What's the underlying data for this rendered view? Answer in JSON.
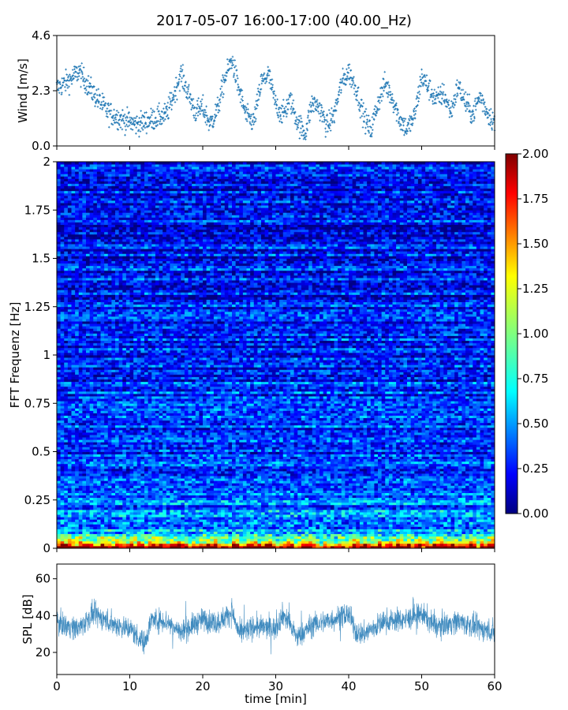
{
  "title": "2017-05-07 16:00-17:00 (40.00_Hz)",
  "chart_data": [
    {
      "type": "scatter",
      "name": "wind",
      "ylabel": "Wind [m/s]",
      "xlim": [
        0,
        60
      ],
      "ylim": [
        0.0,
        4.6
      ],
      "yticks": [
        0.0,
        2.3,
        4.6
      ],
      "ytick_labels": [
        "0.0",
        "2.3",
        "4.6"
      ],
      "color": "#1f77b4",
      "marker": "+",
      "trend_x": [
        0,
        2,
        3,
        5,
        7,
        9,
        11,
        13,
        15,
        16,
        17,
        18,
        19,
        20,
        21,
        22,
        23,
        24,
        25,
        26,
        27,
        28,
        29,
        30,
        31,
        32,
        33,
        34,
        35,
        36,
        37,
        38,
        39,
        40,
        41,
        42,
        43,
        44,
        45,
        46,
        47,
        48,
        49,
        50,
        51,
        52,
        53,
        54,
        55,
        56,
        57,
        58,
        59,
        60
      ],
      "trend_y": [
        2.4,
        2.8,
        3.1,
        2.2,
        1.4,
        1.1,
        0.9,
        1.1,
        1.3,
        2.1,
        3.0,
        2.2,
        1.4,
        1.6,
        0.9,
        1.5,
        2.8,
        3.6,
        2.3,
        1.2,
        1.0,
        2.6,
        3.0,
        1.7,
        1.3,
        1.9,
        1.0,
        0.5,
        1.8,
        1.6,
        0.8,
        1.3,
        2.6,
        3.1,
        2.4,
        1.3,
        0.6,
        1.8,
        2.6,
        2.0,
        1.1,
        0.7,
        1.2,
        2.9,
        2.4,
        1.9,
        2.2,
        1.4,
        2.5,
        1.8,
        1.3,
        2.1,
        1.4,
        1.0
      ],
      "noise": 0.45
    },
    {
      "type": "heatmap",
      "name": "spectrogram",
      "ylabel": "FFT Frequenz [Hz]",
      "xlim": [
        0,
        60
      ],
      "ylim": [
        0,
        2
      ],
      "yticks": [
        0,
        0.25,
        0.5,
        0.75,
        1,
        1.25,
        1.5,
        1.75,
        2
      ],
      "ytick_labels": [
        "0",
        "0.25",
        "0.5",
        "0.75",
        "1",
        "1.25",
        "1.5",
        "1.75",
        "2"
      ],
      "colormap": "jet",
      "colorbar": {
        "range": [
          0.0,
          2.0
        ],
        "ticks": [
          0.0,
          0.25,
          0.5,
          0.75,
          1.0,
          1.25,
          1.5,
          1.75,
          2.0
        ],
        "tick_labels": [
          "0.00",
          "0.25",
          "0.50",
          "0.75",
          "1.00",
          "1.25",
          "1.50",
          "1.75",
          "2.00"
        ]
      },
      "n_time_bins": 120,
      "n_freq_bins": 160,
      "low_freq_energy": 1.6,
      "background_level": 0.38
    },
    {
      "type": "line",
      "name": "spl",
      "ylabel": "SPL [dB]",
      "xlabel": "time [min]",
      "xlim": [
        0,
        60
      ],
      "ylim": [
        8,
        68
      ],
      "yticks": [
        20,
        40,
        60
      ],
      "ytick_labels": [
        "20",
        "40",
        "60"
      ],
      "xticks": [
        0,
        10,
        20,
        30,
        40,
        50,
        60
      ],
      "xtick_labels": [
        "0",
        "10",
        "20",
        "30",
        "40",
        "50",
        "60"
      ],
      "color": "#1f77b4",
      "trend_x": [
        0,
        3,
        5,
        8,
        10,
        12,
        13,
        15,
        17,
        20,
        22,
        24,
        25,
        27,
        30,
        31,
        33,
        35,
        37,
        40,
        41,
        42,
        45,
        48,
        50,
        52,
        55,
        58,
        60
      ],
      "trend_y": [
        36,
        33,
        41,
        35,
        33,
        25,
        38,
        37,
        31,
        38,
        36,
        42,
        30,
        34,
        33,
        41,
        28,
        35,
        37,
        41,
        31,
        30,
        37,
        38,
        41,
        34,
        37,
        33,
        31
      ],
      "spread": 6
    }
  ]
}
